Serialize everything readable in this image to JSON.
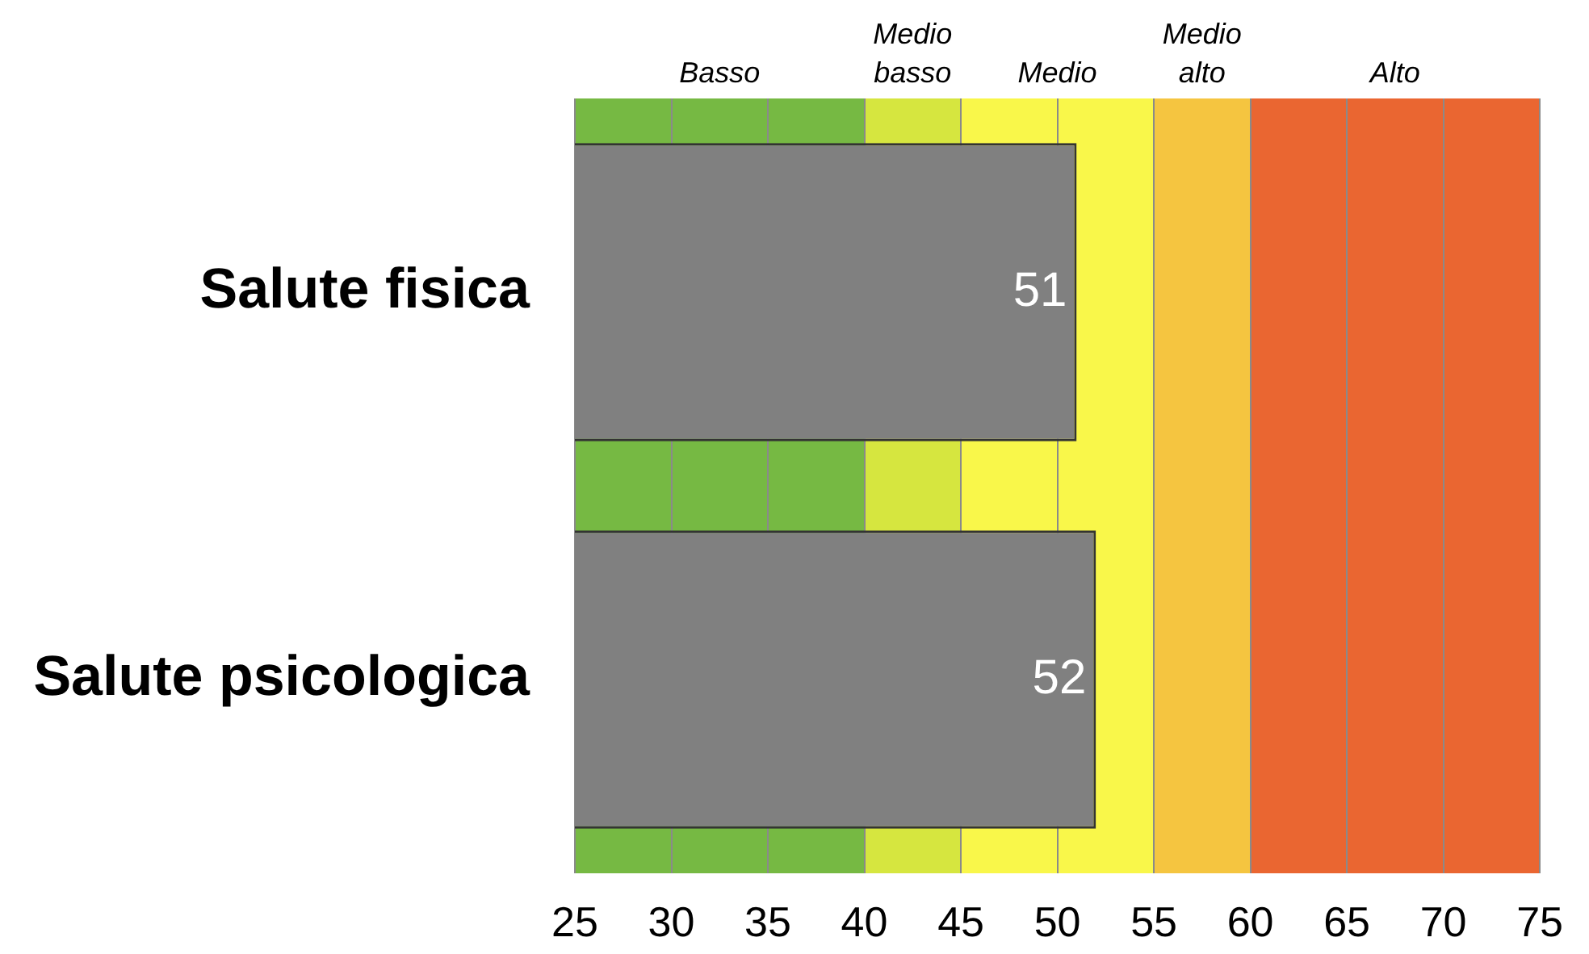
{
  "chart_data": {
    "type": "bar",
    "orientation": "horizontal",
    "categories": [
      "Salute fisica",
      "Salute psicologica"
    ],
    "values": [
      51,
      52
    ],
    "color": "#808080",
    "xlim": [
      25,
      75
    ],
    "xticks": [
      25,
      30,
      35,
      40,
      45,
      50,
      55,
      60,
      65,
      70,
      75
    ],
    "grid": "x",
    "data_labels": true,
    "bands": [
      {
        "axis": "x",
        "from": 25,
        "to": 40,
        "label": "Basso",
        "color": "#76b943"
      },
      {
        "axis": "x",
        "from": 40,
        "to": 45,
        "label": "Medio basso",
        "color": "#d6e63f"
      },
      {
        "axis": "x",
        "from": 45,
        "to": 55,
        "label": "Medio",
        "color": "#f9f74a"
      },
      {
        "axis": "x",
        "from": 55,
        "to": 60,
        "label": "Medio alto",
        "color": "#f5c540"
      },
      {
        "axis": "x",
        "from": 60,
        "to": 75,
        "label": "Alto",
        "color": "#ea6631"
      }
    ]
  }
}
